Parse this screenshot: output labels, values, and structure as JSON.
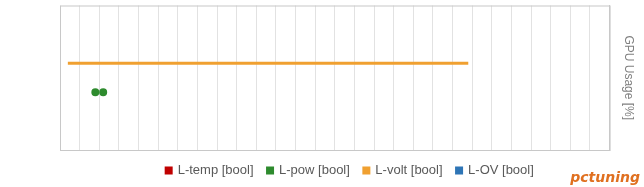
{
  "chart_data": {
    "type": "line",
    "y_label": "GPU Usage [%]",
    "annotations": [
      "pctuning"
    ],
    "x": [
      0.4,
      1.8,
      2.2,
      20.8
    ],
    "xlim": [
      0,
      28
    ],
    "xticks": [
      0,
      1,
      2,
      3,
      4,
      5,
      6,
      7,
      8,
      9,
      10,
      11,
      12,
      13,
      14,
      15,
      16,
      17,
      18,
      19,
      20,
      21,
      22,
      23,
      24,
      25,
      26,
      27,
      28
    ],
    "ylim": [
      0,
      1
    ],
    "grid": true,
    "tick_labels": false,
    "legend": "bottom",
    "series": [
      {
        "name": "L-temp [bool]",
        "color": "#c00000",
        "values": [
          null,
          null,
          null,
          null
        ]
      },
      {
        "name": "L-pow [bool]",
        "color": "#2e8b2e",
        "marker": "circle",
        "line_style": "none",
        "values": [
          null,
          0.4,
          0.4,
          null
        ]
      },
      {
        "name": "L-volt [bool]",
        "color": "#f0a030",
        "marker": "none",
        "line_style": "solid",
        "values": [
          0.6,
          0.6,
          0.6,
          0.6
        ]
      },
      {
        "name": "L-OV [bool]",
        "color": "#2e75b6",
        "values": [
          null,
          null,
          null,
          null
        ]
      }
    ]
  }
}
